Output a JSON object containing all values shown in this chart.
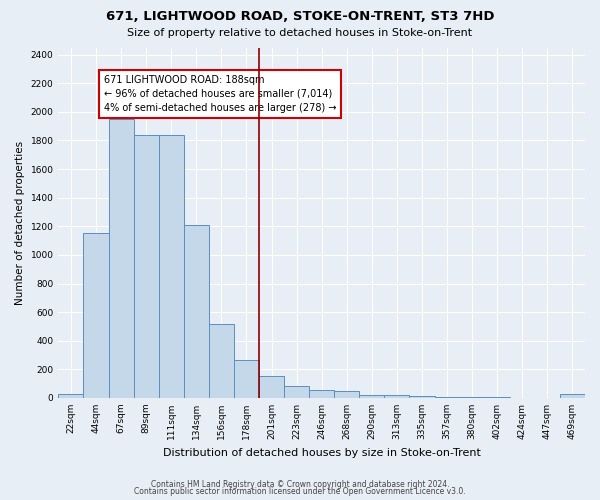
{
  "title": "671, LIGHTWOOD ROAD, STOKE-ON-TRENT, ST3 7HD",
  "subtitle": "Size of property relative to detached houses in Stoke-on-Trent",
  "xlabel": "Distribution of detached houses by size in Stoke-on-Trent",
  "ylabel": "Number of detached properties",
  "bin_labels": [
    "22sqm",
    "44sqm",
    "67sqm",
    "89sqm",
    "111sqm",
    "134sqm",
    "156sqm",
    "178sqm",
    "201sqm",
    "223sqm",
    "246sqm",
    "268sqm",
    "290sqm",
    "313sqm",
    "335sqm",
    "357sqm",
    "380sqm",
    "402sqm",
    "424sqm",
    "447sqm",
    "469sqm"
  ],
  "bar_values": [
    25,
    1150,
    1950,
    1840,
    1840,
    1210,
    520,
    265,
    155,
    80,
    55,
    45,
    20,
    18,
    12,
    5,
    5,
    5,
    2,
    2,
    25
  ],
  "bar_color": "#c5d8ea",
  "bar_edge_color": "#5a8fc0",
  "vline_color": "#8b0000",
  "annotation_text": "671 LIGHTWOOD ROAD: 188sqm\n← 96% of detached houses are smaller (7,014)\n4% of semi-detached houses are larger (278) →",
  "annotation_box_color": "#ffffff",
  "annotation_box_edge_color": "#cc0000",
  "ylim": [
    0,
    2450
  ],
  "footer1": "Contains HM Land Registry data © Crown copyright and database right 2024.",
  "footer2": "Contains public sector information licensed under the Open Government Licence v3.0.",
  "bg_color": "#e8eef5",
  "grid_color": "#ffffff",
  "title_fontsize": 9.5,
  "subtitle_fontsize": 8,
  "xlabel_fontsize": 8,
  "ylabel_fontsize": 7.5,
  "tick_fontsize": 6.5,
  "footer_fontsize": 5.5,
  "annotation_fontsize": 7,
  "vline_bin_index": 7.5
}
